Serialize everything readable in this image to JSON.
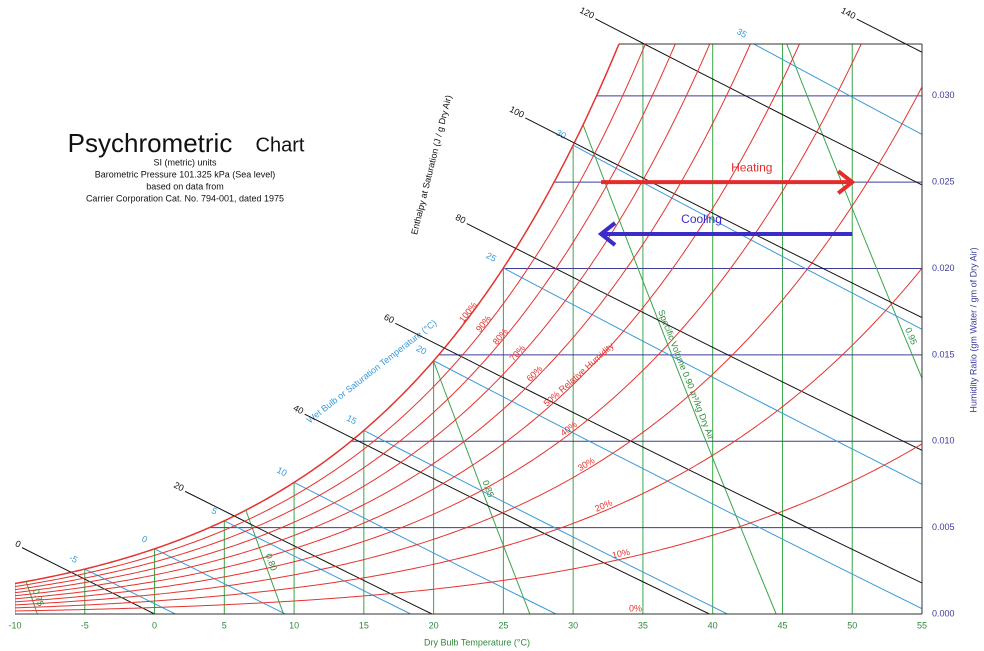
{
  "chart_data": {
    "type": "psychrometric",
    "title": "Psychrometric",
    "title2": "Chart",
    "subtitle": [
      "SI (metric) units",
      "Barometric Pressure 101.325 kPa (Sea level)",
      "based on data from",
      "Carrier Corporation Cat. No. 794-001, dated 1975"
    ],
    "pressure_kpa": 101.325,
    "xlabel": "Dry Bulb Temperature (°C)",
    "ylabel": "Humidity Ratio (gm Water / gm of Dry Air)",
    "xlim": [
      -10,
      55
    ],
    "ylim": [
      0,
      0.033
    ],
    "xticks": [
      -10,
      -5,
      0,
      5,
      10,
      15,
      20,
      25,
      30,
      35,
      40,
      45,
      50,
      55
    ],
    "yticks": [
      {
        "value": 0,
        "label": "0.000"
      },
      0.005,
      {
        "value": 0.01,
        "label": "0.010"
      },
      0.015,
      {
        "value": 0.02,
        "label": "0.020"
      },
      0.025,
      {
        "value": 0.03,
        "label": "0.030"
      }
    ],
    "dry_bulb_color": "#3aa64a",
    "humidity_color": "#3c3c9a",
    "relative_humidity": {
      "values": [
        100,
        90,
        80,
        70,
        60,
        50,
        40,
        30,
        20,
        10,
        0
      ],
      "value_labels": [
        "100%",
        "90%",
        "80%",
        "70%",
        "60%",
        "50% Relative Humidity",
        "40%",
        "30%",
        "20%",
        "10%",
        "0%"
      ],
      "color": "#e3342f"
    },
    "enthalpy": {
      "label": "Enthalpy at Saturation (J / g Dry Air)",
      "values": [
        0,
        20,
        40,
        60,
        80,
        100,
        120,
        140
      ],
      "color": "#111111"
    },
    "wet_bulb": {
      "label": "Wet Bulb or Saturation Temperature (°C)",
      "values": [
        -5,
        0,
        5,
        10,
        15,
        20,
        25,
        30,
        35
      ],
      "color": "#3a9ad9"
    },
    "specific_volume": {
      "values": [
        0.75,
        0.8,
        0.85,
        0.9,
        0.95
      ],
      "value_labels": [
        "0.75",
        "0.80",
        "0.85",
        "Specific Volume 0.90 m³/kg Dry Air",
        "0.95"
      ],
      "color": "#3aa64a"
    },
    "annotations": [
      {
        "text": "Heating",
        "color": "#e52b2b",
        "x": [
          32,
          50
        ],
        "y": 0.025
      },
      {
        "text": "Cooling",
        "color": "#3b2cc9",
        "x": [
          50,
          32
        ],
        "y": 0.022
      }
    ]
  }
}
